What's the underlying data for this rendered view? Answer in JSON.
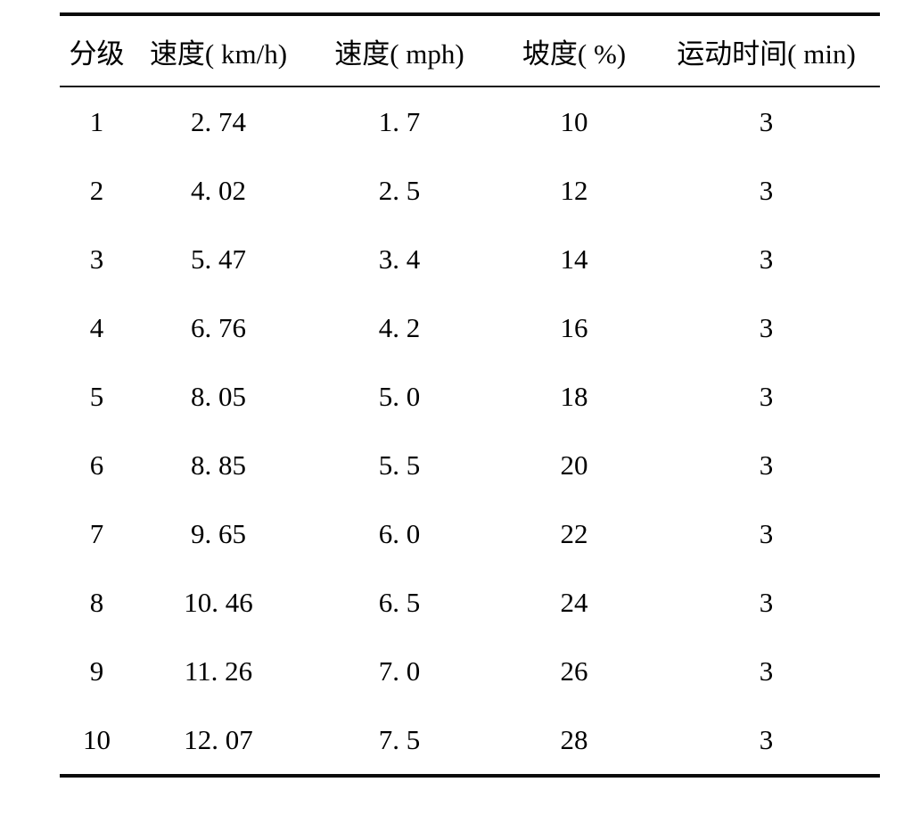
{
  "table": {
    "headers": [
      "分级",
      "速度( km/h)",
      "速度( mph)",
      "坡度( %)",
      "运动时间( min)"
    ],
    "rows": [
      [
        "1",
        "2. 74",
        "1. 7",
        "10",
        "3"
      ],
      [
        "2",
        "4. 02",
        "2. 5",
        "12",
        "3"
      ],
      [
        "3",
        "5. 47",
        "3. 4",
        "14",
        "3"
      ],
      [
        "4",
        "6. 76",
        "4. 2",
        "16",
        "3"
      ],
      [
        "5",
        "8. 05",
        "5. 0",
        "18",
        "3"
      ],
      [
        "6",
        "8. 85",
        "5. 5",
        "20",
        "3"
      ],
      [
        "7",
        "9. 65",
        "6. 0",
        "22",
        "3"
      ],
      [
        "8",
        "10. 46",
        "6. 5",
        "24",
        "3"
      ],
      [
        "9",
        "11. 26",
        "7. 0",
        "26",
        "3"
      ],
      [
        "10",
        "12. 07",
        "7. 5",
        "28",
        "3"
      ]
    ],
    "colors": {
      "text": "#000000",
      "background": "#ffffff",
      "rule": "#0a0a0a"
    }
  }
}
